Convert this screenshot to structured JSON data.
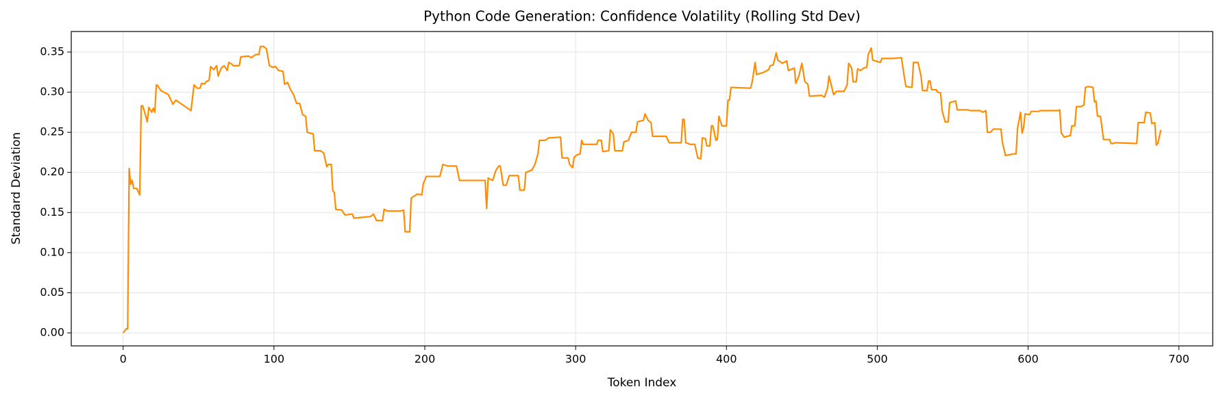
{
  "chart_data": {
    "type": "line",
    "title": "Python Code Generation: Confidence Volatility (Rolling Std Dev)",
    "xlabel": "Token Index",
    "ylabel": "Standard Deviation",
    "x": [
      0,
      2,
      3,
      4,
      5,
      6,
      7,
      9,
      11,
      12,
      13,
      15,
      16,
      17,
      19,
      20,
      21,
      22,
      23,
      25,
      30,
      33,
      35,
      45,
      47,
      49,
      51,
      52,
      54,
      55,
      57,
      58,
      60,
      62,
      63,
      65,
      67,
      69,
      70,
      72,
      73,
      77,
      78,
      83,
      85,
      88,
      90,
      91,
      93,
      95,
      97,
      99,
      101,
      103,
      106,
      107,
      109,
      111,
      113,
      115,
      117,
      119,
      121,
      122,
      126,
      127,
      131,
      133,
      135,
      136,
      138,
      139,
      140,
      141,
      145,
      147,
      152,
      153,
      164,
      166,
      168,
      172,
      173,
      175,
      184,
      186,
      187,
      190,
      191,
      195,
      198,
      199,
      201,
      210,
      212,
      215,
      221,
      223,
      240,
      241,
      242,
      245,
      247,
      249,
      250,
      252,
      254,
      256,
      262,
      263,
      266,
      267,
      271,
      273,
      275,
      276,
      280,
      282,
      290,
      291,
      295,
      296,
      298,
      299,
      301,
      303,
      304,
      305,
      314,
      315,
      317,
      318,
      322,
      323,
      325,
      326,
      331,
      332,
      335,
      337,
      340,
      341,
      345,
      346,
      348,
      350,
      351,
      360,
      362,
      370,
      371,
      372,
      373,
      376,
      379,
      381,
      383,
      384,
      386,
      387,
      389,
      390,
      391,
      393,
      394,
      395,
      397,
      400,
      401,
      402,
      403,
      416,
      417,
      419,
      420,
      425,
      428,
      429,
      431,
      433,
      434,
      437,
      440,
      441,
      445,
      446,
      448,
      450,
      452,
      454,
      455,
      463,
      465,
      467,
      468,
      470,
      471,
      473,
      478,
      480,
      481,
      483,
      484,
      486,
      487,
      489,
      491,
      493,
      494,
      496,
      497,
      502,
      503,
      510,
      516,
      518,
      519,
      523,
      524,
      527,
      529,
      530,
      533,
      534,
      535,
      536,
      539,
      540,
      542,
      543,
      545,
      547,
      548,
      552,
      553,
      560,
      562,
      568,
      570,
      572,
      573,
      575,
      577,
      582,
      583,
      585,
      590,
      592,
      593,
      595,
      596,
      597,
      598,
      601,
      602,
      607,
      608,
      620,
      621,
      622,
      624,
      628,
      629,
      631,
      632,
      635,
      637,
      638,
      640,
      643,
      644,
      645,
      646,
      648,
      650,
      654,
      655,
      656,
      658,
      672,
      673,
      677,
      678,
      681,
      682,
      684,
      685,
      686,
      688
    ],
    "series": [
      {
        "name": "Rolling Std Dev",
        "color": "#ff8c00",
        "values": [
          0.0,
          0.005,
          0.005,
          0.205,
          0.185,
          0.19,
          0.18,
          0.18,
          0.172,
          0.283,
          0.283,
          0.27,
          0.263,
          0.281,
          0.275,
          0.28,
          0.275,
          0.309,
          0.308,
          0.302,
          0.297,
          0.285,
          0.29,
          0.277,
          0.309,
          0.305,
          0.305,
          0.311,
          0.31,
          0.313,
          0.315,
          0.332,
          0.328,
          0.333,
          0.32,
          0.33,
          0.333,
          0.327,
          0.337,
          0.335,
          0.333,
          0.333,
          0.344,
          0.345,
          0.343,
          0.347,
          0.347,
          0.357,
          0.357,
          0.354,
          0.333,
          0.331,
          0.332,
          0.327,
          0.326,
          0.31,
          0.312,
          0.303,
          0.297,
          0.286,
          0.286,
          0.272,
          0.27,
          0.25,
          0.248,
          0.227,
          0.227,
          0.224,
          0.207,
          0.21,
          0.21,
          0.177,
          0.175,
          0.154,
          0.153,
          0.147,
          0.148,
          0.143,
          0.145,
          0.148,
          0.14,
          0.14,
          0.154,
          0.152,
          0.152,
          0.153,
          0.126,
          0.126,
          0.168,
          0.173,
          0.172,
          0.186,
          0.195,
          0.195,
          0.21,
          0.208,
          0.208,
          0.19,
          0.19,
          0.155,
          0.193,
          0.19,
          0.202,
          0.208,
          0.208,
          0.184,
          0.184,
          0.196,
          0.196,
          0.178,
          0.178,
          0.2,
          0.203,
          0.21,
          0.223,
          0.24,
          0.24,
          0.243,
          0.244,
          0.218,
          0.218,
          0.21,
          0.206,
          0.219,
          0.222,
          0.223,
          0.24,
          0.235,
          0.235,
          0.24,
          0.24,
          0.226,
          0.227,
          0.253,
          0.248,
          0.227,
          0.227,
          0.238,
          0.24,
          0.25,
          0.25,
          0.263,
          0.265,
          0.273,
          0.265,
          0.262,
          0.245,
          0.245,
          0.237,
          0.237,
          0.266,
          0.266,
          0.237,
          0.235,
          0.235,
          0.218,
          0.217,
          0.243,
          0.242,
          0.233,
          0.233,
          0.258,
          0.258,
          0.24,
          0.241,
          0.27,
          0.258,
          0.258,
          0.29,
          0.29,
          0.306,
          0.305,
          0.312,
          0.337,
          0.322,
          0.325,
          0.328,
          0.333,
          0.334,
          0.349,
          0.34,
          0.336,
          0.339,
          0.327,
          0.33,
          0.311,
          0.32,
          0.336,
          0.313,
          0.31,
          0.295,
          0.296,
          0.294,
          0.305,
          0.32,
          0.305,
          0.297,
          0.301,
          0.301,
          0.309,
          0.336,
          0.33,
          0.313,
          0.313,
          0.329,
          0.327,
          0.33,
          0.331,
          0.347,
          0.355,
          0.34,
          0.337,
          0.342,
          0.342,
          0.343,
          0.318,
          0.307,
          0.306,
          0.337,
          0.337,
          0.32,
          0.302,
          0.302,
          0.314,
          0.314,
          0.303,
          0.303,
          0.3,
          0.299,
          0.277,
          0.263,
          0.263,
          0.287,
          0.289,
          0.278,
          0.278,
          0.277,
          0.277,
          0.275,
          0.277,
          0.25,
          0.25,
          0.254,
          0.254,
          0.237,
          0.221,
          0.223,
          0.223,
          0.255,
          0.275,
          0.249,
          0.256,
          0.273,
          0.272,
          0.276,
          0.276,
          0.277,
          0.277,
          0.278,
          0.249,
          0.244,
          0.246,
          0.258,
          0.258,
          0.282,
          0.282,
          0.284,
          0.306,
          0.307,
          0.306,
          0.288,
          0.289,
          0.27,
          0.27,
          0.241,
          0.241,
          0.236,
          0.236,
          0.237,
          0.236,
          0.262,
          0.262,
          0.275,
          0.274,
          0.261,
          0.262,
          0.234,
          0.236,
          0.253
        ]
      }
    ],
    "xlim": [
      -34.4,
      722.4
    ],
    "xticks": [
      0,
      100,
      200,
      300,
      400,
      500,
      600,
      700
    ],
    "ylim": [
      -0.0162,
      0.3756
    ],
    "yticks": [
      {
        "value": 0,
        "label": "0.00"
      },
      0.05,
      {
        "value": 0.1,
        "label": "0.10"
      },
      0.15,
      {
        "value": 0.2,
        "label": "0.20"
      },
      0.25,
      {
        "value": 0.3,
        "label": "0.30"
      },
      0.35
    ],
    "grid": true
  }
}
